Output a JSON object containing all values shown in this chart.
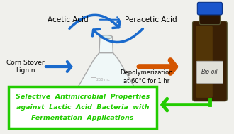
{
  "background_color": "#f0f0ec",
  "acetic_acid_label": "Acetic Acid",
  "peracetic_acid_label": "Peracetic Acid",
  "corn_stover_label": "Corn Stover\nLignin",
  "depolymerization_label": "Depolymerization\nat 60°C for 1 hr",
  "bio_oil_label": "Bio-oil",
  "bottom_text_line1": "Selective  Antimicrobial  Properties",
  "bottom_text_line2": "against  Lactic  Acid  Bacteria  with",
  "bottom_text_line3": "Fermentation  Applications",
  "blue_arrow_color": "#1a6acc",
  "orange_arrow_color": "#d45500",
  "green_arrow_color": "#22cc00",
  "green_text_color": "#22cc00",
  "box_color": "#22cc00",
  "bottle_body_color": "#100500",
  "bottle_amber_color": "#8b6914",
  "bottle_cap_color": "#1a55cc",
  "bottle_label_color": "#e0e0d8",
  "flask_edge_color": "#aaaaaa"
}
